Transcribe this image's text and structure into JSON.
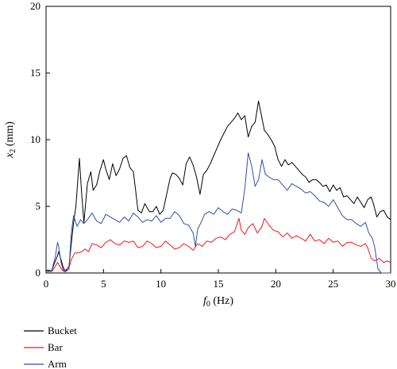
{
  "chart_data": {
    "type": "line",
    "title": "",
    "xlabel": {
      "symbol": "f",
      "sub": "0",
      "unit": " (Hz)"
    },
    "ylabel": {
      "symbol": "x",
      "sub": "2",
      "unit": " (mm)"
    },
    "xlim": [
      0,
      30
    ],
    "ylim": [
      0,
      20
    ],
    "xticks": [
      "0",
      "5",
      "10",
      "15",
      "20",
      "25",
      "30"
    ],
    "yticks": [
      "0",
      "5",
      "10",
      "15",
      "20"
    ],
    "grid": false,
    "legend_position": "bottom-left",
    "series": [
      {
        "name": "Bucket",
        "color": "#000000",
        "x": [
          0,
          0.5,
          0.8,
          1.0,
          1.1,
          1.3,
          1.5,
          1.7,
          2.0,
          2.2,
          2.4,
          2.6,
          2.9,
          3.1,
          3.3,
          3.6,
          3.9,
          4.1,
          4.4,
          4.7,
          5.0,
          5.2,
          5.5,
          5.8,
          6.1,
          6.4,
          6.7,
          7.0,
          7.3,
          7.6,
          7.8,
          8.0,
          8.3,
          8.6,
          9.0,
          9.3,
          9.6,
          9.9,
          10.2,
          10.5,
          10.8,
          11.0,
          11.3,
          11.6,
          11.9,
          12.2,
          12.5,
          12.8,
          13.1,
          13.4,
          13.7,
          14.0,
          14.3,
          14.6,
          14.9,
          15.2,
          15.5,
          15.8,
          16.1,
          16.4,
          16.7,
          17.0,
          17.3,
          17.6,
          17.9,
          18.2,
          18.5,
          18.8,
          19.0,
          19.3,
          19.6,
          19.9,
          20.2,
          20.5,
          20.8,
          21.1,
          21.4,
          21.7,
          22.0,
          22.3,
          22.6,
          22.9,
          23.2,
          23.5,
          23.8,
          24.1,
          24.4,
          24.7,
          25.0,
          25.3,
          25.6,
          25.9,
          26.2,
          26.5,
          26.8,
          27.1,
          27.4,
          27.7,
          28.0,
          28.3,
          28.5,
          28.8,
          29.1,
          29.4,
          29.7,
          30.0
        ],
        "y": [
          0.2,
          0.2,
          0.9,
          1.3,
          1.6,
          1.0,
          0.4,
          0.1,
          0.5,
          2.2,
          3.8,
          5.0,
          8.6,
          6.0,
          3.8,
          6.7,
          7.6,
          6.2,
          6.6,
          7.7,
          8.5,
          7.8,
          7.0,
          8.2,
          7.3,
          7.8,
          8.6,
          8.8,
          7.9,
          7.6,
          6.2,
          4.7,
          4.5,
          5.2,
          4.6,
          4.6,
          5.0,
          4.4,
          4.7,
          5.9,
          7.1,
          7.5,
          7.4,
          7.1,
          6.6,
          8.2,
          8.7,
          8.1,
          7.2,
          5.9,
          7.4,
          7.7,
          8.2,
          8.8,
          9.4,
          10.0,
          10.5,
          11.0,
          11.3,
          11.6,
          12.0,
          11.5,
          11.8,
          10.2,
          11.0,
          11.3,
          12.9,
          11.6,
          10.7,
          10.4,
          10.0,
          9.5,
          8.5,
          8.0,
          8.5,
          8.1,
          8.3,
          8.0,
          7.7,
          7.4,
          7.2,
          6.8,
          7.0,
          7.0,
          6.8,
          6.5,
          6.6,
          6.1,
          6.6,
          6.2,
          6.4,
          5.7,
          5.8,
          5.5,
          5.2,
          5.7,
          5.3,
          4.9,
          5.5,
          5.7,
          5.2,
          4.2,
          4.6,
          4.7,
          4.2,
          4.0
        ]
      },
      {
        "name": "Bar",
        "color": "#e8191c",
        "x": [
          0,
          0.5,
          0.8,
          1.0,
          1.2,
          1.4,
          1.6,
          1.8,
          2.0,
          2.2,
          2.5,
          2.8,
          3.1,
          3.4,
          3.7,
          4.0,
          4.4,
          4.8,
          5.2,
          5.6,
          6.0,
          6.4,
          6.8,
          7.2,
          7.6,
          8.0,
          8.4,
          8.8,
          9.2,
          9.6,
          10.0,
          10.4,
          10.8,
          11.2,
          11.6,
          12.0,
          12.4,
          12.8,
          13.2,
          13.6,
          14.0,
          14.4,
          14.8,
          15.2,
          15.6,
          16.0,
          16.4,
          16.8,
          17.0,
          17.3,
          17.6,
          18.0,
          18.4,
          18.8,
          19.0,
          19.4,
          19.8,
          20.2,
          20.6,
          21.0,
          21.4,
          21.8,
          22.2,
          22.6,
          23.0,
          23.4,
          23.8,
          24.2,
          24.6,
          25.0,
          25.4,
          25.8,
          26.2,
          26.6,
          27.0,
          27.4,
          27.8,
          28.0,
          28.3,
          28.6,
          29.0,
          29.4,
          29.7,
          30.0
        ],
        "y": [
          0.1,
          0.1,
          0.5,
          0.8,
          0.5,
          0.2,
          0.1,
          0.3,
          0.4,
          1.0,
          1.5,
          1.5,
          1.6,
          1.8,
          1.6,
          2.2,
          2.1,
          1.9,
          2.3,
          2.5,
          2.2,
          2.1,
          2.4,
          2.3,
          2.4,
          1.9,
          2.0,
          2.4,
          2.2,
          1.9,
          2.0,
          2.4,
          2.1,
          1.8,
          1.9,
          2.2,
          2.0,
          1.7,
          2.2,
          2.0,
          2.4,
          2.3,
          2.6,
          2.7,
          2.5,
          2.9,
          3.1,
          4.1,
          3.2,
          2.9,
          3.4,
          3.7,
          3.0,
          3.5,
          4.1,
          3.6,
          3.2,
          3.1,
          2.7,
          3.0,
          2.6,
          2.8,
          2.6,
          2.4,
          2.9,
          2.4,
          2.5,
          2.2,
          2.6,
          2.3,
          2.4,
          2.0,
          2.3,
          2.3,
          2.1,
          2.0,
          2.2,
          1.9,
          1.1,
          0.9,
          1.1,
          0.8,
          0.9,
          0.8
        ]
      },
      {
        "name": "Arm",
        "color": "#2e4fa3",
        "x": [
          0,
          0.5,
          0.8,
          1.0,
          1.1,
          1.3,
          1.5,
          1.7,
          2.0,
          2.2,
          2.4,
          2.7,
          3.0,
          3.3,
          3.6,
          4.0,
          4.4,
          4.8,
          5.2,
          5.6,
          6.0,
          6.4,
          6.8,
          7.2,
          7.6,
          8.0,
          8.4,
          8.8,
          9.2,
          9.6,
          10.0,
          10.4,
          10.8,
          11.2,
          11.6,
          12.0,
          12.4,
          12.8,
          13.0,
          13.2,
          13.5,
          13.8,
          14.2,
          14.6,
          15.0,
          15.4,
          15.8,
          16.2,
          16.6,
          17.0,
          17.3,
          17.6,
          17.9,
          18.2,
          18.5,
          18.8,
          19.1,
          19.4,
          19.8,
          20.2,
          20.6,
          21.0,
          21.4,
          21.8,
          22.2,
          22.6,
          23.0,
          23.4,
          23.8,
          24.2,
          24.6,
          25.0,
          25.4,
          25.8,
          26.2,
          26.6,
          27.0,
          27.4,
          27.8,
          28.1,
          28.4,
          28.6,
          28.9,
          29.2,
          29.6,
          30.0
        ],
        "y": [
          0.1,
          0.2,
          1.2,
          2.3,
          2.0,
          0.8,
          0.2,
          0.1,
          0.3,
          3.0,
          4.3,
          3.5,
          4.0,
          3.7,
          4.0,
          4.5,
          3.9,
          3.7,
          4.4,
          4.2,
          4.0,
          3.8,
          4.2,
          3.9,
          4.5,
          4.2,
          3.8,
          4.0,
          3.9,
          4.3,
          3.8,
          4.1,
          4.1,
          4.6,
          4.3,
          3.7,
          3.6,
          3.0,
          2.0,
          3.3,
          3.8,
          4.4,
          4.6,
          4.4,
          4.9,
          4.6,
          4.4,
          4.8,
          4.7,
          4.5,
          6.3,
          9.0,
          8.0,
          6.5,
          7.0,
          8.5,
          7.4,
          7.2,
          7.0,
          7.0,
          6.6,
          6.2,
          6.7,
          6.5,
          6.3,
          6.0,
          6.1,
          5.8,
          5.4,
          5.3,
          5.0,
          5.5,
          4.9,
          4.3,
          4.0,
          4.0,
          3.7,
          3.5,
          3.8,
          3.0,
          2.6,
          2.0,
          0.3,
          0.0,
          0.0,
          0.0
        ]
      }
    ]
  }
}
